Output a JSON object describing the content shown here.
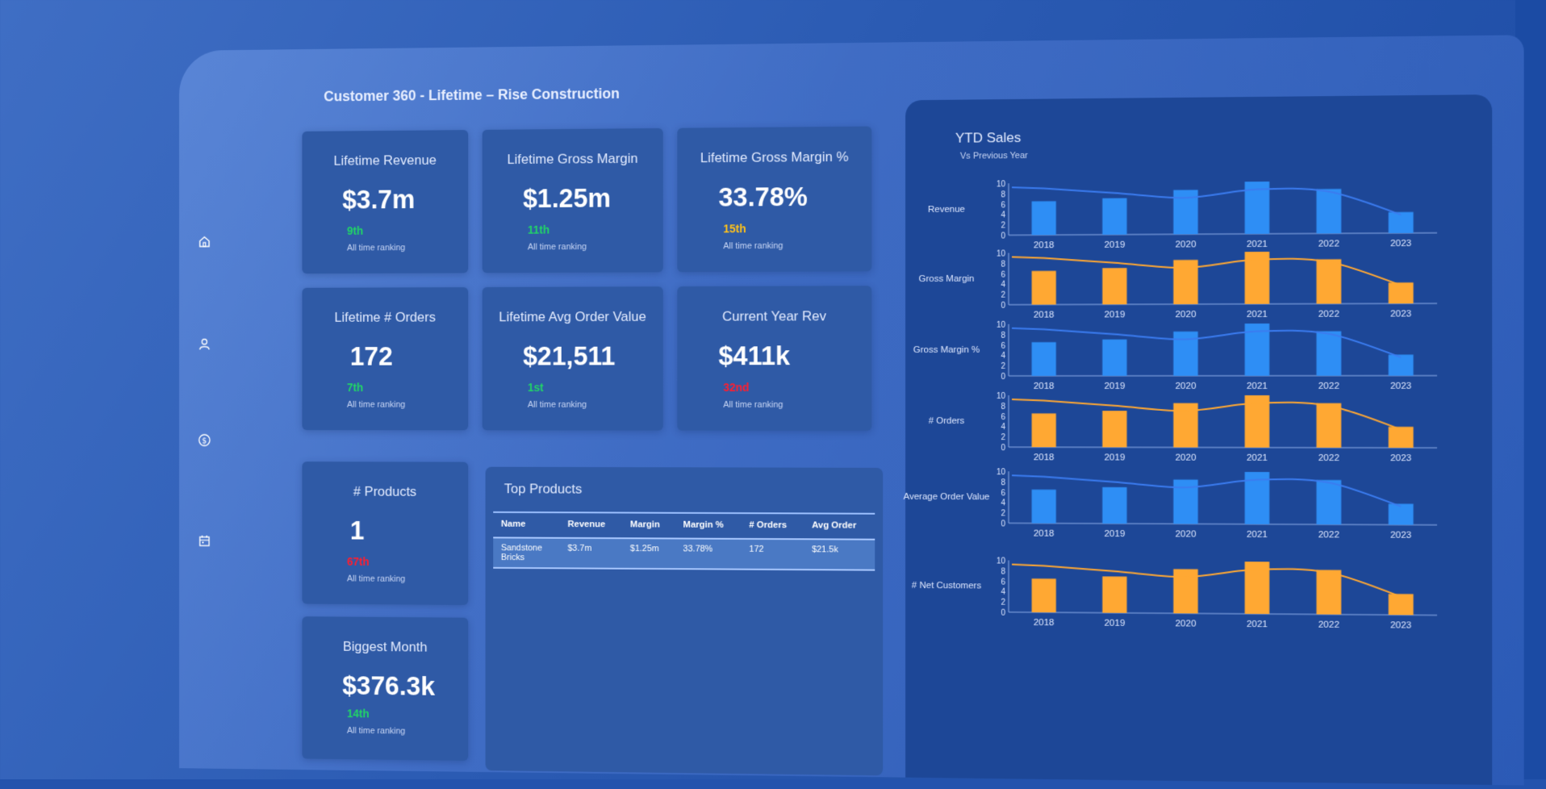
{
  "title": "Customer 360  - Lifetime – Rise Construction",
  "sidebar": [
    {
      "icon": "home-icon"
    },
    {
      "icon": "user-icon"
    },
    {
      "icon": "dollar-icon"
    },
    {
      "icon": "calendar-icon"
    }
  ],
  "kpis": {
    "lifetime_revenue": {
      "label": "Lifetime Revenue",
      "value": "$3.7m",
      "rank": "9th",
      "rank_color": "#21d467",
      "sub": "All time ranking"
    },
    "lifetime_gross_margin": {
      "label": "Lifetime Gross Margin",
      "value": "$1.25m",
      "rank": "11th",
      "rank_color": "#21d467",
      "sub": "All time ranking"
    },
    "lifetime_gross_margin_pct": {
      "label": "Lifetime Gross Margin %",
      "value": "33.78%",
      "rank": "15th",
      "rank_color": "#ffc21a",
      "sub": "All time ranking"
    },
    "lifetime_orders": {
      "label": "Lifetime # Orders",
      "value": "172",
      "rank": "7th",
      "rank_color": "#21d467",
      "sub": "All time ranking"
    },
    "lifetime_avg_order_value": {
      "label": "Lifetime Avg Order Value",
      "value": "$21,511",
      "rank": "1st",
      "rank_color": "#21d467",
      "sub": "All time ranking"
    },
    "current_year_rev": {
      "label": "Current Year Rev",
      "value": "$411k",
      "rank": "32nd",
      "rank_color": "#ff1e2e",
      "sub": "All time ranking"
    },
    "products": {
      "label": "# Products",
      "value": "1",
      "rank": "67th",
      "rank_color": "#ff1e2e",
      "sub": "All time ranking"
    },
    "biggest_month": {
      "label": "Biggest Month",
      "value": "$376.3k",
      "rank": "14th",
      "rank_color": "#21d467",
      "sub": "All time ranking"
    }
  },
  "top_products": {
    "title": "Top Products",
    "columns": [
      "Name",
      "Revenue",
      "Margin",
      "Margin %",
      "# Orders",
      "Avg Order"
    ],
    "rows": [
      {
        "name_line1": "Sandstone",
        "name_line2": "Bricks",
        "revenue": "$3.7m",
        "margin": "$1.25m",
        "margin_pct": "33.78%",
        "orders": "172",
        "avg_order": "$21.5k"
      }
    ]
  },
  "ytd": {
    "title": "YTD Sales",
    "subtitle": "Vs Previous Year"
  },
  "colors": {
    "blue_bar": "#2e8ef5",
    "orange_bar": "#ffa833",
    "blue_line": "#3b7cf0",
    "orange_line": "#ffa833"
  },
  "chart_data": [
    {
      "type": "bar",
      "label": "Revenue",
      "categories": [
        "2018",
        "2019",
        "2020",
        "2021",
        "2022",
        "2023"
      ],
      "values": [
        6.5,
        7,
        8.5,
        10,
        8.5,
        4
      ],
      "line": [
        9,
        8,
        7,
        8.5,
        8,
        3.5
      ],
      "color": "blue",
      "ylim": [
        0,
        10
      ],
      "yticks": [
        "0",
        "2",
        "4",
        "6",
        "8",
        "10"
      ]
    },
    {
      "type": "bar",
      "label": "Gross Margin",
      "categories": [
        "2018",
        "2019",
        "2020",
        "2021",
        "2022",
        "2023"
      ],
      "values": [
        6.5,
        7,
        8.5,
        10,
        8.5,
        4
      ],
      "line": [
        9,
        8,
        7,
        8.5,
        8,
        3.5
      ],
      "color": "orange",
      "ylim": [
        0,
        10
      ],
      "yticks": [
        "0",
        "2",
        "4",
        "6",
        "8",
        "10"
      ]
    },
    {
      "type": "bar",
      "label": "Gross Margin %",
      "categories": [
        "2018",
        "2019",
        "2020",
        "2021",
        "2022",
        "2023"
      ],
      "values": [
        6.5,
        7,
        8.5,
        10,
        8.5,
        4
      ],
      "line": [
        9,
        8,
        7,
        8.5,
        8,
        3.5
      ],
      "color": "blue",
      "ylim": [
        0,
        10
      ],
      "yticks": [
        "0",
        "2",
        "4",
        "6",
        "8",
        "10"
      ]
    },
    {
      "type": "bar",
      "label": "# Orders",
      "categories": [
        "2018",
        "2019",
        "2020",
        "2021",
        "2022",
        "2023"
      ],
      "values": [
        6.5,
        7,
        8.5,
        10,
        8.5,
        4
      ],
      "line": [
        9,
        8,
        7,
        8.5,
        8,
        3.5
      ],
      "color": "orange",
      "ylim": [
        0,
        10
      ],
      "yticks": [
        "0",
        "2",
        "4",
        "6",
        "8",
        "10"
      ]
    },
    {
      "type": "bar",
      "label": "Average Order Value",
      "categories": [
        "2018",
        "2019",
        "2020",
        "2021",
        "2022",
        "2023"
      ],
      "values": [
        6.5,
        7,
        8.5,
        10,
        8.5,
        4
      ],
      "line": [
        9,
        8,
        7,
        8.5,
        8,
        3.5
      ],
      "color": "blue",
      "ylim": [
        0,
        10
      ],
      "yticks": [
        "0",
        "2",
        "4",
        "6",
        "8",
        "10"
      ]
    },
    {
      "type": "bar",
      "label": "# Net Customers",
      "categories": [
        "2018",
        "2019",
        "2020",
        "2021",
        "2022",
        "2023"
      ],
      "values": [
        6.5,
        7,
        8.5,
        10,
        8.5,
        4
      ],
      "line": [
        9,
        8,
        7,
        8.5,
        8,
        3.5
      ],
      "color": "orange",
      "ylim": [
        0,
        10
      ],
      "yticks": [
        "0",
        "2",
        "4",
        "6",
        "8",
        "10"
      ]
    }
  ]
}
